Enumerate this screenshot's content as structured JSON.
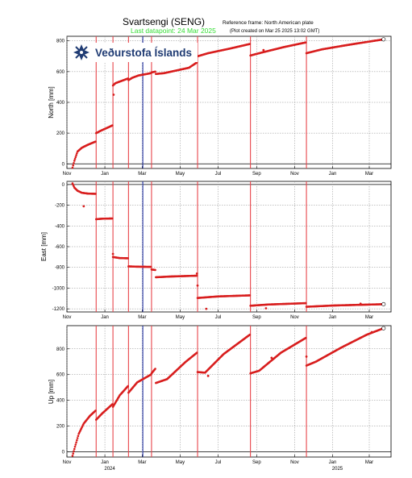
{
  "header": {
    "station": "Svartsengi (SENG)",
    "reference_frame": "Reference frame: North American plate",
    "last_datapoint": "Last datapoint: 24 Mar 2025",
    "plot_created": "(Plot created on Mar 25 2025 13:02 GMT)"
  },
  "logo": {
    "text": "Veðurstofa Íslands",
    "icon": "imo-snowflake-icon",
    "color": "#1f3b73"
  },
  "colors": {
    "data": "#d81e1e",
    "event_red": "#e8454b",
    "event_blue": "#2b3aa8",
    "last_point": "#ffffff"
  },
  "chart_data": [
    {
      "type": "scatter",
      "ylabel": "North [mm]",
      "ylim": [
        -30,
        830
      ],
      "yticks": [
        0,
        200,
        400,
        600,
        800
      ],
      "x_start": "2023-11-01",
      "x_end": "2025-04-05",
      "xticks": [
        {
          "date": "2023-11-01",
          "label": "Nov"
        },
        {
          "date": "2024-01-01",
          "label": "Jan"
        },
        {
          "date": "2024-03-01",
          "label": "Mar"
        },
        {
          "date": "2024-05-01",
          "label": "May"
        },
        {
          "date": "2024-07-01",
          "label": "Jul"
        },
        {
          "date": "2024-09-01",
          "label": "Sep"
        },
        {
          "date": "2024-11-01",
          "label": "Nov"
        },
        {
          "date": "2025-01-01",
          "label": "Jan"
        },
        {
          "date": "2025-03-01",
          "label": "Mar"
        }
      ],
      "segments": [
        {
          "x": [
            "2023-11-10",
            "2023-11-13",
            "2023-11-18",
            "2023-11-25",
            "2023-12-05",
            "2023-12-17"
          ],
          "y": [
            -25,
            20,
            80,
            105,
            125,
            145
          ]
        },
        {
          "x": [
            "2023-12-18",
            "2023-12-25",
            "2024-01-05",
            "2024-01-13"
          ],
          "y": [
            200,
            215,
            235,
            250
          ]
        },
        {
          "x": [
            "2024-01-14",
            "2024-01-18",
            "2024-01-28",
            "2024-02-07"
          ],
          "y": [
            510,
            525,
            540,
            555
          ]
        },
        {
          "x": [
            "2024-02-08",
            "2024-02-14",
            "2024-02-24",
            "2024-03-15"
          ],
          "y": [
            545,
            560,
            575,
            590
          ]
        },
        {
          "x": [
            "2024-03-16",
            "2024-03-22"
          ],
          "y": [
            595,
            600
          ]
        },
        {
          "x": [
            "2024-03-23",
            "2024-04-05",
            "2024-05-15",
            "2024-05-28"
          ],
          "y": [
            585,
            590,
            625,
            660
          ]
        },
        {
          "x": [
            "2024-05-29",
            "2024-06-15",
            "2024-07-20",
            "2024-08-21"
          ],
          "y": [
            700,
            720,
            750,
            780
          ]
        },
        {
          "x": [
            "2024-08-22",
            "2024-09-10",
            "2024-10-15",
            "2024-11-19"
          ],
          "y": [
            705,
            725,
            760,
            790
          ]
        },
        {
          "x": [
            "2024-11-20",
            "2024-12-15",
            "2025-01-20",
            "2025-02-20",
            "2025-03-24"
          ],
          "y": [
            720,
            745,
            770,
            790,
            810
          ]
        }
      ],
      "outliers": [
        {
          "x": "2024-01-15",
          "y": 450
        },
        {
          "x": "2024-09-12",
          "y": 740
        }
      ],
      "last_point": {
        "x": "2025-03-24",
        "y": 810
      }
    },
    {
      "type": "scatter",
      "ylabel": "East [mm]",
      "ylim": [
        -1230,
        30
      ],
      "yticks": [
        0,
        -200,
        -400,
        -600,
        -800,
        -1000,
        -1200
      ],
      "x_start": "2023-11-01",
      "x_end": "2025-04-05",
      "xticks": [
        {
          "date": "2023-11-01",
          "label": "Nov"
        },
        {
          "date": "2024-01-01",
          "label": "Jan"
        },
        {
          "date": "2024-03-01",
          "label": "Mar"
        },
        {
          "date": "2024-05-01",
          "label": "May"
        },
        {
          "date": "2024-07-01",
          "label": "Jul"
        },
        {
          "date": "2024-09-01",
          "label": "Sep"
        },
        {
          "date": "2024-11-01",
          "label": "Nov"
        },
        {
          "date": "2025-01-01",
          "label": "Jan"
        },
        {
          "date": "2025-03-01",
          "label": "Mar"
        }
      ],
      "segments": [
        {
          "x": [
            "2023-11-10",
            "2023-11-13",
            "2023-11-18",
            "2023-11-25",
            "2023-12-05",
            "2023-12-17"
          ],
          "y": [
            10,
            -30,
            -60,
            -80,
            -88,
            -90
          ]
        },
        {
          "x": [
            "2023-12-18",
            "2023-12-28",
            "2024-01-13"
          ],
          "y": [
            -335,
            -330,
            -328
          ]
        },
        {
          "x": [
            "2024-01-14",
            "2024-01-25",
            "2024-02-07"
          ],
          "y": [
            -700,
            -710,
            -712
          ]
        },
        {
          "x": [
            "2024-02-08",
            "2024-02-20",
            "2024-03-15"
          ],
          "y": [
            -790,
            -793,
            -795
          ]
        },
        {
          "x": [
            "2024-03-16",
            "2024-03-22"
          ],
          "y": [
            -820,
            -825
          ]
        },
        {
          "x": [
            "2024-03-23",
            "2024-04-15",
            "2024-05-28"
          ],
          "y": [
            -895,
            -888,
            -880
          ]
        },
        {
          "x": [
            "2024-05-29",
            "2024-07-01",
            "2024-08-21"
          ],
          "y": [
            -1095,
            -1080,
            -1070
          ]
        },
        {
          "x": [
            "2024-08-22",
            "2024-09-20",
            "2024-11-19"
          ],
          "y": [
            -1170,
            -1158,
            -1145
          ]
        },
        {
          "x": [
            "2024-11-20",
            "2025-01-01",
            "2025-03-24"
          ],
          "y": [
            -1180,
            -1168,
            -1155
          ]
        }
      ],
      "outliers": [
        {
          "x": "2023-11-28",
          "y": -210
        },
        {
          "x": "2024-01-14",
          "y": -670
        },
        {
          "x": "2024-05-28",
          "y": -860
        },
        {
          "x": "2024-05-29",
          "y": -975
        },
        {
          "x": "2024-06-12",
          "y": -1200
        },
        {
          "x": "2024-09-16",
          "y": -1195
        },
        {
          "x": "2025-02-15",
          "y": -1150
        }
      ],
      "last_point": {
        "x": "2025-03-24",
        "y": -1155
      }
    },
    {
      "type": "scatter",
      "ylabel": "Up [mm]",
      "ylim": [
        -40,
        980
      ],
      "yticks": [
        0,
        200,
        400,
        600,
        800
      ],
      "x_start": "2023-11-01",
      "x_end": "2025-04-05",
      "xticks": [
        {
          "date": "2023-11-01",
          "label": "Nov"
        },
        {
          "date": "2024-01-01",
          "label": "Jan"
        },
        {
          "date": "2024-03-01",
          "label": "Mar"
        },
        {
          "date": "2024-05-01",
          "label": "May"
        },
        {
          "date": "2024-07-01",
          "label": "Jul"
        },
        {
          "date": "2024-09-01",
          "label": "Sep"
        },
        {
          "date": "2024-11-01",
          "label": "Nov"
        },
        {
          "date": "2025-01-01",
          "label": "Jan"
        },
        {
          "date": "2025-03-01",
          "label": "Mar"
        }
      ],
      "year_labels": [
        {
          "date": "2024-01-01",
          "label": "2024"
        },
        {
          "date": "2025-01-01",
          "label": "2025"
        }
      ],
      "segments": [
        {
          "x": [
            "2023-11-10",
            "2023-11-14",
            "2023-11-20",
            "2023-11-28",
            "2023-12-08",
            "2023-12-17"
          ],
          "y": [
            -30,
            40,
            140,
            220,
            280,
            320
          ]
        },
        {
          "x": [
            "2023-12-18",
            "2023-12-28",
            "2024-01-13"
          ],
          "y": [
            250,
            300,
            370
          ]
        },
        {
          "x": [
            "2024-01-14",
            "2024-01-25",
            "2024-02-07"
          ],
          "y": [
            350,
            440,
            510
          ]
        },
        {
          "x": [
            "2024-02-08",
            "2024-02-22",
            "2024-03-15"
          ],
          "y": [
            460,
            540,
            600
          ]
        },
        {
          "x": [
            "2024-03-16",
            "2024-03-22"
          ],
          "y": [
            610,
            645
          ]
        },
        {
          "x": [
            "2024-03-23",
            "2024-04-10",
            "2024-05-10",
            "2024-05-28"
          ],
          "y": [
            535,
            565,
            700,
            770
          ]
        },
        {
          "x": [
            "2024-05-29",
            "2024-06-10",
            "2024-07-10",
            "2024-08-21"
          ],
          "y": [
            620,
            615,
            760,
            910
          ]
        },
        {
          "x": [
            "2024-08-22",
            "2024-09-05",
            "2024-10-10",
            "2024-11-19"
          ],
          "y": [
            610,
            630,
            770,
            885
          ]
        },
        {
          "x": [
            "2024-11-20",
            "2024-12-05",
            "2025-01-15",
            "2025-02-25",
            "2025-03-24"
          ],
          "y": [
            670,
            700,
            810,
            910,
            960
          ]
        }
      ],
      "outliers": [
        {
          "x": "2024-06-15",
          "y": 590
        },
        {
          "x": "2024-09-25",
          "y": 730
        },
        {
          "x": "2024-11-20",
          "y": 740
        },
        {
          "x": "2025-03-05",
          "y": 930
        }
      ],
      "last_point": {
        "x": "2025-03-24",
        "y": 960
      }
    }
  ],
  "events": [
    {
      "date": "2023-12-18",
      "color": "red"
    },
    {
      "date": "2024-01-14",
      "color": "red"
    },
    {
      "date": "2024-02-08",
      "color": "red"
    },
    {
      "date": "2024-03-02",
      "color": "blue"
    },
    {
      "date": "2024-03-16",
      "color": "red"
    },
    {
      "date": "2024-05-29",
      "color": "red"
    },
    {
      "date": "2024-08-22",
      "color": "red"
    },
    {
      "date": "2024-11-20",
      "color": "red"
    }
  ]
}
